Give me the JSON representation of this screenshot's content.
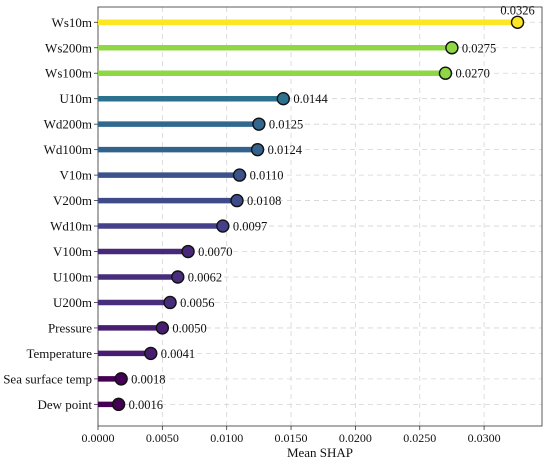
{
  "chart_data": {
    "type": "lollipop",
    "title": "",
    "xlabel": "Mean SHAP",
    "ylabel": "",
    "xlim": [
      0,
      0.0345
    ],
    "xticks": [
      0.0,
      0.005,
      0.01,
      0.015,
      0.02,
      0.025,
      0.03
    ],
    "xtick_labels": [
      "0.0000",
      "0.0050",
      "0.0100",
      "0.0150",
      "0.0200",
      "0.0250",
      "0.0300"
    ],
    "grid": true,
    "grid_style": "dashed",
    "colormap": "viridis",
    "features": [
      "Ws10m",
      "Ws200m",
      "Ws100m",
      "U10m",
      "Wd200m",
      "Wd100m",
      "V10m",
      "V200m",
      "Wd10m",
      "V100m",
      "U100m",
      "U200m",
      "Pressure",
      "Temperature",
      "Sea surface temp",
      "Dew point"
    ],
    "values": [
      0.0326,
      0.0275,
      0.027,
      0.0144,
      0.0125,
      0.0124,
      0.011,
      0.0108,
      0.0097,
      0.007,
      0.0062,
      0.0056,
      0.005,
      0.0041,
      0.0018,
      0.0016
    ],
    "value_labels": [
      "0.0326",
      "0.0275",
      "0.0270",
      "0.0144",
      "0.0125",
      "0.0124",
      "0.0110",
      "0.0108",
      "0.0097",
      "0.0070",
      "0.0062",
      "0.0056",
      "0.0050",
      "0.0041",
      "0.0018",
      "0.0016"
    ],
    "colors": [
      "#fde725",
      "#8fd744",
      "#8fd744",
      "#2c728e",
      "#31688e",
      "#33638d",
      "#3b528b",
      "#3f4a8a",
      "#46408b",
      "#482878",
      "#472d7b",
      "#472d7b",
      "#481f70",
      "#481c6e",
      "#440154",
      "#440154"
    ]
  }
}
